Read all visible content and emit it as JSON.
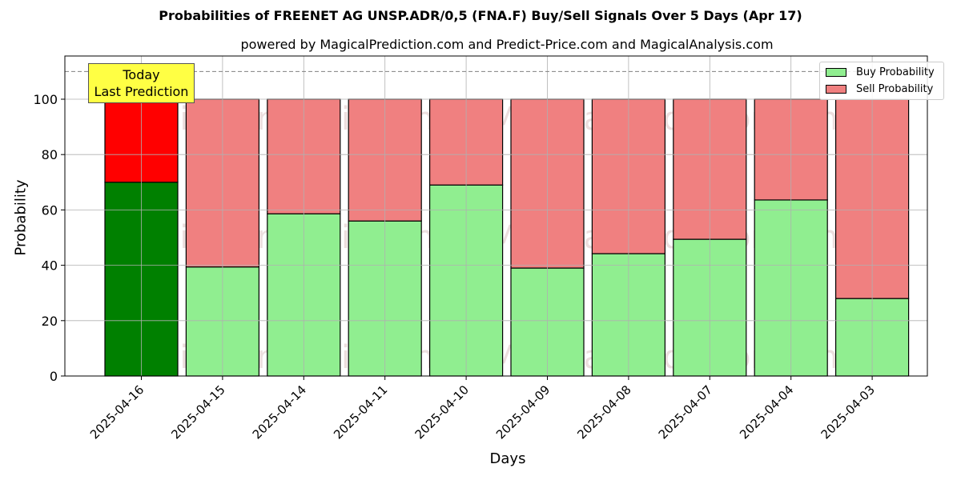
{
  "title": "Probabilities of FREENET AG  UNSP.ADR/0,5 (FNA.F) Buy/Sell Signals Over 5 Days (Apr 17)",
  "subtitle": "powered by MagicalPrediction.com and Predict-Price.com and MagicalAnalysis.com",
  "annotation": {
    "line1": "Today",
    "line2": "Last Prediction",
    "color": "#ffff44"
  },
  "legend": {
    "items": [
      {
        "label": "Buy Probability",
        "color": "#90ee90"
      },
      {
        "label": "Sell Probability",
        "color": "#f08080"
      }
    ]
  },
  "watermarks": [
    "MagicalAnalysis.com",
    "MagicalPrediction.com"
  ],
  "colors": {
    "buy": "#90ee90",
    "sell": "#f08080",
    "buy_today": "#008000",
    "sell_today": "#ff0000",
    "grid": "#b0b0b0",
    "reference_line": "#808080"
  },
  "chart_data": {
    "type": "bar",
    "stacked": true,
    "title": "Probabilities of FREENET AG  UNSP.ADR/0,5 (FNA.F) Buy/Sell Signals Over 5 Days (Apr 17)",
    "subtitle": "powered by MagicalPrediction.com and Predict-Price.com and MagicalAnalysis.com",
    "xlabel": "Days",
    "ylabel": "Probability",
    "ylim": [
      0,
      115
    ],
    "yticks": [
      0,
      20,
      40,
      60,
      80,
      100
    ],
    "grid": true,
    "legend_position": "upper right",
    "reference_line": {
      "y": 110,
      "style": "dashed"
    },
    "categories": [
      "2025-04-16",
      "2025-04-15",
      "2025-04-14",
      "2025-04-11",
      "2025-04-10",
      "2025-04-09",
      "2025-04-08",
      "2025-04-07",
      "2025-04-04",
      "2025-04-03"
    ],
    "series": [
      {
        "name": "Buy Probability",
        "values": [
          70.0,
          39.4,
          58.6,
          56.0,
          69.0,
          39.0,
          44.2,
          49.4,
          63.6,
          28.0
        ]
      },
      {
        "name": "Sell Probability",
        "values": [
          30.0,
          60.6,
          41.4,
          44.0,
          31.0,
          61.0,
          55.8,
          50.6,
          36.4,
          72.0
        ]
      }
    ],
    "highlighted_category": "2025-04-16"
  }
}
